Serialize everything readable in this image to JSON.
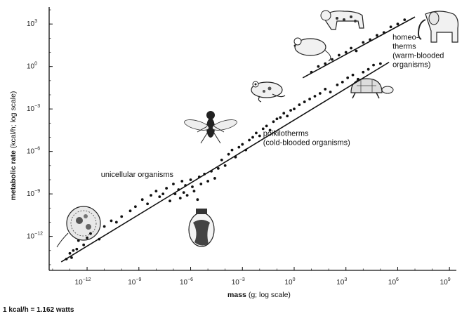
{
  "chart_data": {
    "type": "scatter",
    "title": "",
    "x_axis": {
      "label_bold": "mass",
      "label_rest": " (g; log scale)",
      "scale": "log",
      "range_log10": [
        -14.2,
        9.4
      ],
      "ticks": [
        {
          "base": "10",
          "exp": "−12",
          "log": -12
        },
        {
          "base": "10",
          "exp": "−9",
          "log": -9
        },
        {
          "base": "10",
          "exp": "−6",
          "log": -6
        },
        {
          "base": "10",
          "exp": "−3",
          "log": -3
        },
        {
          "base": "10",
          "exp": "0",
          "log": 0
        },
        {
          "base": "10",
          "exp": "3",
          "log": 3
        },
        {
          "base": "10",
          "exp": "6",
          "log": 6
        },
        {
          "base": "10",
          "exp": "9",
          "log": 9
        }
      ]
    },
    "y_axis": {
      "label_bold": "metabolic rate",
      "label_rest": " (kcal/h; log scale)",
      "scale": "log",
      "range_log10": [
        -14.4,
        4.2
      ],
      "ticks": [
        {
          "base": "10",
          "exp": "3",
          "log": 3
        },
        {
          "base": "10",
          "exp": "0",
          "log": 0
        },
        {
          "base": "10",
          "exp": "−3",
          "log": -3
        },
        {
          "base": "10",
          "exp": "−6",
          "log": -6
        },
        {
          "base": "10",
          "exp": "−9",
          "log": -9
        },
        {
          "base": "10",
          "exp": "−12",
          "log": -12
        }
      ]
    },
    "fit_lines": [
      {
        "group": "unicellular-poikilotherms",
        "x_log": [
          -13.5,
          5.5
        ],
        "y_log": [
          -13.8,
          0.3
        ]
      },
      {
        "group": "homeotherms",
        "x_log": [
          0.5,
          7.0
        ],
        "y_log": [
          -0.8,
          3.5
        ]
      }
    ],
    "annotations": [
      {
        "id": "unicellular",
        "lines": [
          "unicellular organisms"
        ],
        "x_log": -11.2,
        "y_log": -7.8
      },
      {
        "id": "poikilotherms",
        "lines": [
          "poikilotherms",
          "(cold-blooded organisms)"
        ],
        "x_log": -1.8,
        "y_log": -4.9
      },
      {
        "id": "homeotherms",
        "lines": [
          "homeo-",
          "therms",
          "(warm-blooded",
          "organisms)"
        ],
        "x_log": 5.7,
        "y_log": 1.9
      }
    ],
    "points": [
      [
        -13.2,
        -13.6
      ],
      [
        -13.0,
        -13.2
      ],
      [
        -12.9,
        -13.5
      ],
      [
        -12.8,
        -13.0
      ],
      [
        -12.6,
        -12.9
      ],
      [
        -12.5,
        -12.3
      ],
      [
        -12.2,
        -12.6
      ],
      [
        -12.0,
        -12.1
      ],
      [
        -11.8,
        -11.8
      ],
      [
        -11.3,
        -12.2
      ],
      [
        -11.0,
        -11.3
      ],
      [
        -10.6,
        -10.9
      ],
      [
        -10.3,
        -11.0
      ],
      [
        -10.0,
        -10.6
      ],
      [
        -9.5,
        -10.2
      ],
      [
        -9.2,
        -9.9
      ],
      [
        -8.8,
        -9.4
      ],
      [
        -8.5,
        -9.7
      ],
      [
        -8.3,
        -9.1
      ],
      [
        -8.0,
        -8.8
      ],
      [
        -7.8,
        -9.2
      ],
      [
        -7.6,
        -9.0
      ],
      [
        -7.4,
        -8.6
      ],
      [
        -7.2,
        -9.5
      ],
      [
        -7.0,
        -8.3
      ],
      [
        -6.9,
        -9.0
      ],
      [
        -6.7,
        -8.7
      ],
      [
        -6.6,
        -9.3
      ],
      [
        -6.5,
        -8.1
      ],
      [
        -6.4,
        -8.9
      ],
      [
        -6.3,
        -8.4
      ],
      [
        -6.2,
        -9.1
      ],
      [
        -6.0,
        -8.0
      ],
      [
        -5.9,
        -8.5
      ],
      [
        -5.8,
        -8.8
      ],
      [
        -5.6,
        -9.4
      ],
      [
        -5.5,
        -7.8
      ],
      [
        -5.4,
        -8.3
      ],
      [
        -5.2,
        -7.6
      ],
      [
        -5.0,
        -8.1
      ],
      [
        -4.8,
        -7.4
      ],
      [
        -4.6,
        -7.9
      ],
      [
        -4.4,
        -7.2
      ],
      [
        -4.2,
        -6.6
      ],
      [
        -4.0,
        -7.0
      ],
      [
        -3.8,
        -6.2
      ],
      [
        -3.6,
        -5.9
      ],
      [
        -3.4,
        -6.4
      ],
      [
        -3.2,
        -5.7
      ],
      [
        -3.0,
        -5.5
      ],
      [
        -2.8,
        -5.9
      ],
      [
        -2.6,
        -5.2
      ],
      [
        -2.4,
        -5.0
      ],
      [
        -2.2,
        -4.7
      ],
      [
        -2.0,
        -4.9
      ],
      [
        -1.8,
        -4.4
      ],
      [
        -1.6,
        -4.2
      ],
      [
        -1.4,
        -4.5
      ],
      [
        -1.2,
        -3.9
      ],
      [
        -1.0,
        -3.7
      ],
      [
        -0.8,
        -3.6
      ],
      [
        -0.6,
        -3.3
      ],
      [
        -0.4,
        -3.5
      ],
      [
        -0.2,
        -3.1
      ],
      [
        0.0,
        -3.0
      ],
      [
        0.3,
        -2.7
      ],
      [
        0.6,
        -2.5
      ],
      [
        0.9,
        -2.3
      ],
      [
        1.2,
        -2.1
      ],
      [
        1.5,
        -1.9
      ],
      [
        1.8,
        -1.6
      ],
      [
        2.1,
        -1.8
      ],
      [
        2.5,
        -1.3
      ],
      [
        2.8,
        -1.1
      ],
      [
        3.1,
        -0.8
      ],
      [
        3.4,
        -0.6
      ],
      [
        3.7,
        -0.9
      ],
      [
        4.0,
        -0.4
      ],
      [
        4.3,
        -0.2
      ],
      [
        4.6,
        0.1
      ],
      [
        5.0,
        0.2
      ],
      [
        1.0,
        -0.4
      ],
      [
        1.4,
        0.0
      ],
      [
        1.8,
        0.2
      ],
      [
        2.2,
        0.5
      ],
      [
        2.6,
        0.8
      ],
      [
        3.0,
        1.0
      ],
      [
        3.3,
        1.3
      ],
      [
        3.6,
        1.1
      ],
      [
        4.0,
        1.7
      ],
      [
        4.4,
        1.9
      ],
      [
        4.8,
        2.2
      ],
      [
        5.2,
        2.4
      ],
      [
        5.6,
        2.8
      ],
      [
        6.0,
        3.0
      ],
      [
        6.4,
        3.3
      ]
    ]
  },
  "footnote": "1 kcal/h = 1.162 watts"
}
